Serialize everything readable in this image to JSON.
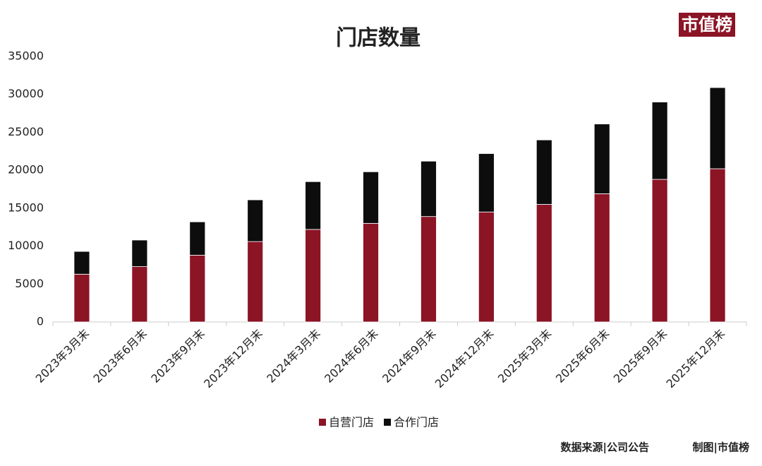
{
  "chart_data": {
    "type": "stacked_bar",
    "title": "门店数量",
    "brand": "市值榜",
    "source": "数据来源|公司公告",
    "credit": "制图|市值榜",
    "categories": [
      "2023年3月末",
      "2023年6月末",
      "2023年9月末",
      "2023年12月末",
      "2024年3月末",
      "2024年6月末",
      "2024年9月末",
      "2024年12月末",
      "2025年3月末",
      "2025年6月末",
      "2025年9月末",
      "2025年12月末"
    ],
    "series": [
      {
        "name": "自营门店",
        "color": "#8b1425",
        "values": [
          6300,
          7300,
          8800,
          10600,
          12200,
          13000,
          13900,
          14500,
          15500,
          16900,
          18800,
          20200
        ]
      },
      {
        "name": "合作门店",
        "color": "#0d0d0d",
        "values": [
          3000,
          3500,
          4400,
          5500,
          6300,
          6800,
          7300,
          7700,
          8500,
          9200,
          10200,
          10700
        ]
      }
    ],
    "ylim": [
      0,
      35000
    ],
    "yticks": [
      0,
      5000,
      10000,
      15000,
      20000,
      25000,
      30000,
      35000
    ],
    "grid": false
  }
}
